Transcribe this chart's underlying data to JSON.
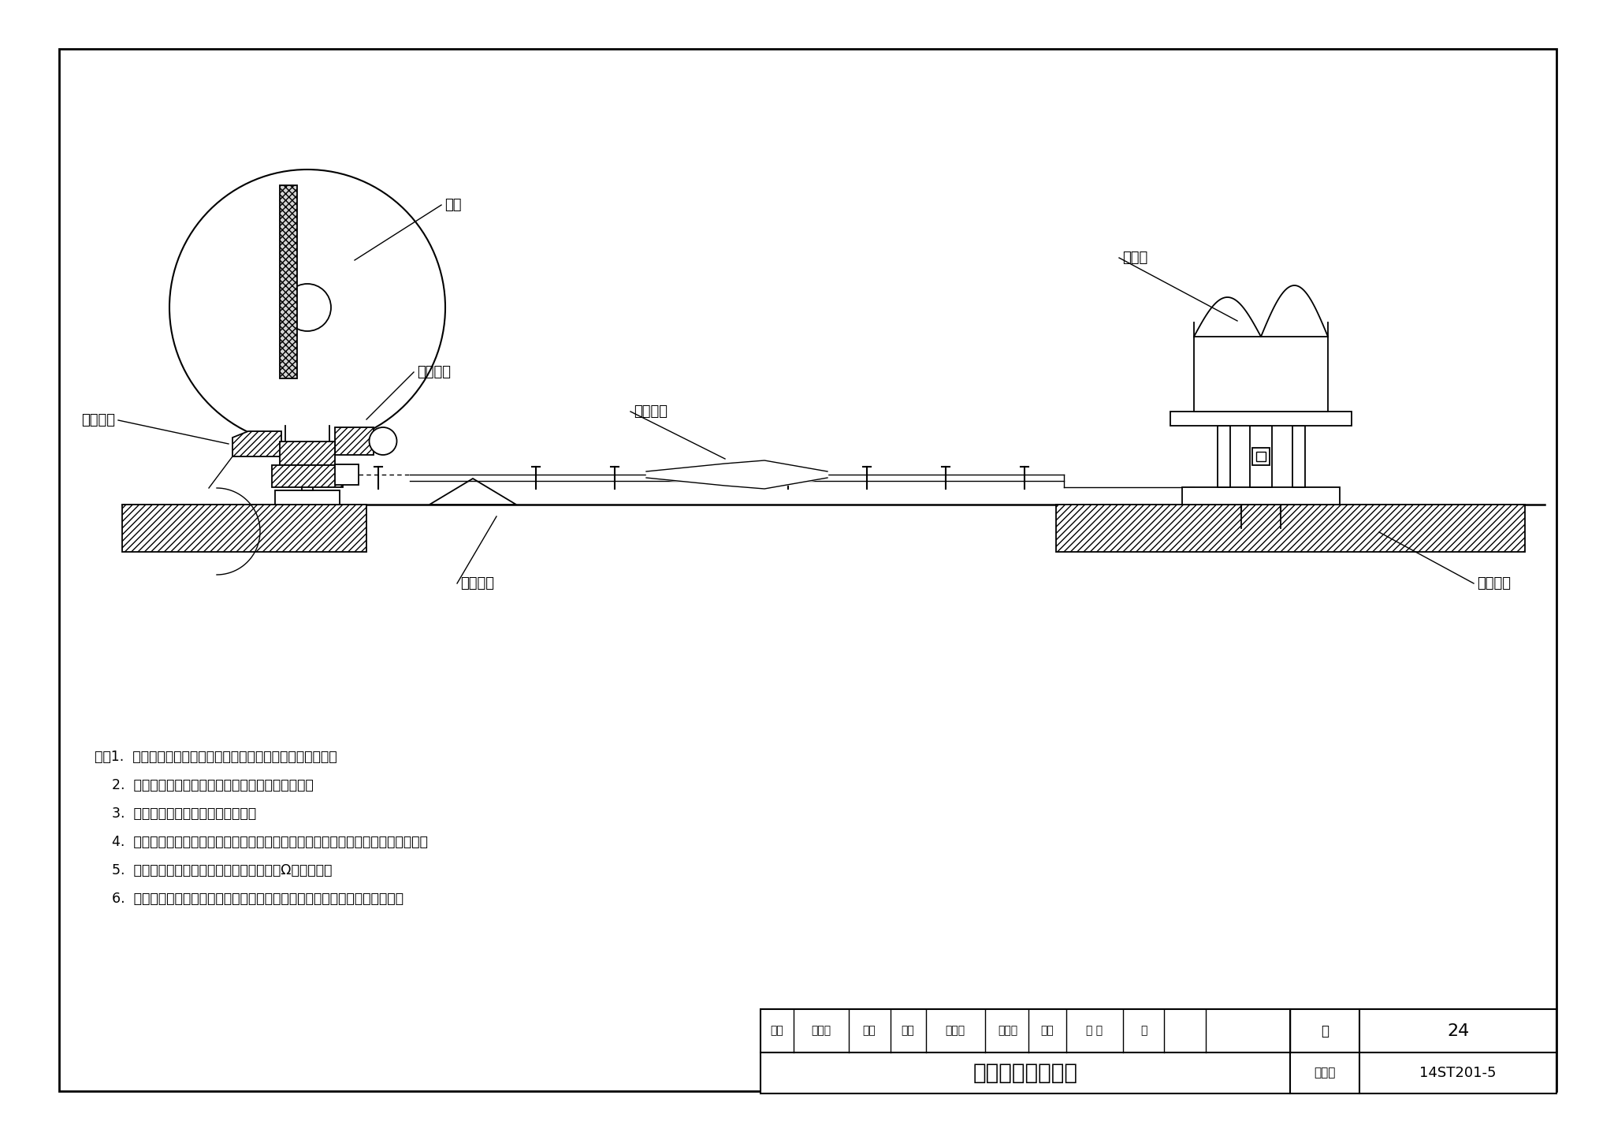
{
  "title": "计轴设备安装总图",
  "atlas_no_label": "图集号",
  "atlas_no": "14ST201-5",
  "page_label": "页",
  "page_no": "24",
  "label_car_wheel": "车轮",
  "label_receive": "接收磁头",
  "label_send": "发送磁头",
  "label_ebox": "电子盒",
  "label_tube": "防护软管",
  "label_clamp": "固定卡具",
  "label_base": "安装基座",
  "notes": [
    "注：1.  计轴装置的安装位置、安装方法应符合设计和相关要求。",
    "    2.  电子盒安装位置应根据磁头电缆的布置方式确定。",
    "    3.  电子盒密封装置完整，接地良好。",
    "    4.  计轴装置采用专用电缆，长度符合设计要求，走线应平稳走向，严禁盘圈、弯折。",
    "    5.  计轴电缆应采用橡皮软管防护，并用金属Ω卡箍固定。",
    "    6.  电子盒安装应与地面保持垂直，安装应平稳、牢固，费栓应紧固、无松动。"
  ],
  "review_label1": "审核",
  "review_name1": "高玉起",
  "sig1": "孟北",
  "review_label2": "校对",
  "review_name2": "张晓披",
  "sig2": "张晓披",
  "review_label3": "设计",
  "review_name3": "戟 伟",
  "sig3": "刘",
  "bg_color": "#ffffff",
  "lc": "#000000"
}
